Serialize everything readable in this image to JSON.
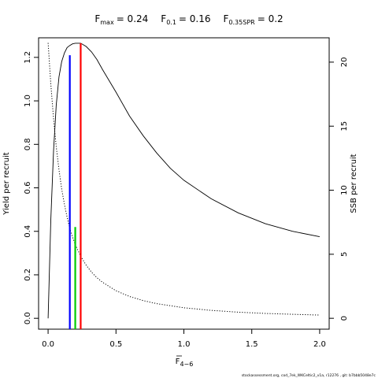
{
  "title": {
    "fmax_label": "F",
    "fmax_sub": "max",
    "fmax_value": "= 0.24",
    "f01_label": "F",
    "f01_sub": "0.1",
    "f01_value": "= 0.16",
    "f035_label": "F",
    "f035_sub": "0.35SPR",
    "f035_value": "= 0.2"
  },
  "footer": "stockassessment.org, cod_7ek_WKCeltic2_v1a, r12276 , git: b7bbb5048e7c",
  "chart_data": {
    "type": "line",
    "title": "",
    "xlabel": "F",
    "xlabel_sub": "4−6",
    "ylabel": "Yield per recruit",
    "y2label": "SSB per recruit",
    "xlim": [
      -0.07,
      2.07
    ],
    "ylim": [
      -0.05,
      1.29
    ],
    "y2lim": [
      -0.85,
      21.9
    ],
    "x_ticks": [
      "0.0",
      "0.5",
      "1.0",
      "1.5",
      "2.0"
    ],
    "y_ticks": [
      "0.0",
      "0.2",
      "0.4",
      "0.6",
      "0.8",
      "1.0",
      "1.2"
    ],
    "y2_ticks": [
      "0",
      "5",
      "10",
      "15",
      "20"
    ],
    "grid": false,
    "series": [
      {
        "style": "solid",
        "axis": "left",
        "x": [
          0,
          0.02,
          0.04,
          0.06,
          0.08,
          0.1,
          0.12,
          0.14,
          0.16,
          0.18,
          0.2,
          0.24,
          0.28,
          0.32,
          0.36,
          0.4,
          0.5,
          0.6,
          0.7,
          0.8,
          0.9,
          1.0,
          1.2,
          1.4,
          1.6,
          1.8,
          2.0
        ],
        "y": [
          0,
          0.45,
          0.77,
          0.98,
          1.11,
          1.18,
          1.22,
          1.245,
          1.255,
          1.262,
          1.265,
          1.265,
          1.25,
          1.225,
          1.19,
          1.145,
          1.04,
          0.93,
          0.84,
          0.76,
          0.69,
          0.635,
          0.55,
          0.485,
          0.435,
          0.4,
          0.375
        ]
      },
      {
        "style": "dotted",
        "axis": "right",
        "x": [
          0,
          0.02,
          0.04,
          0.06,
          0.08,
          0.1,
          0.12,
          0.14,
          0.16,
          0.18,
          0.2,
          0.24,
          0.28,
          0.32,
          0.36,
          0.4,
          0.5,
          0.6,
          0.7,
          0.8,
          1.0,
          1.2,
          1.4,
          1.6,
          1.8,
          2.0
        ],
        "y": [
          21.5,
          18.3,
          15.6,
          13.4,
          11.6,
          10.1,
          8.9,
          7.9,
          7.0,
          6.35,
          5.75,
          4.85,
          4.15,
          3.6,
          3.17,
          2.82,
          2.15,
          1.7,
          1.38,
          1.14,
          0.82,
          0.62,
          0.48,
          0.38,
          0.31,
          0.25
        ]
      }
    ],
    "reference_lines": [
      {
        "name": "F0.1",
        "x": 0.16,
        "y": 1.21,
        "color": "#0000ff"
      },
      {
        "name": "F0.35SPR",
        "x": 0.2,
        "y": 0.42,
        "color": "#00cd00"
      },
      {
        "name": "Fmax",
        "x": 0.24,
        "y": 1.265,
        "color": "#ff0000"
      }
    ]
  }
}
